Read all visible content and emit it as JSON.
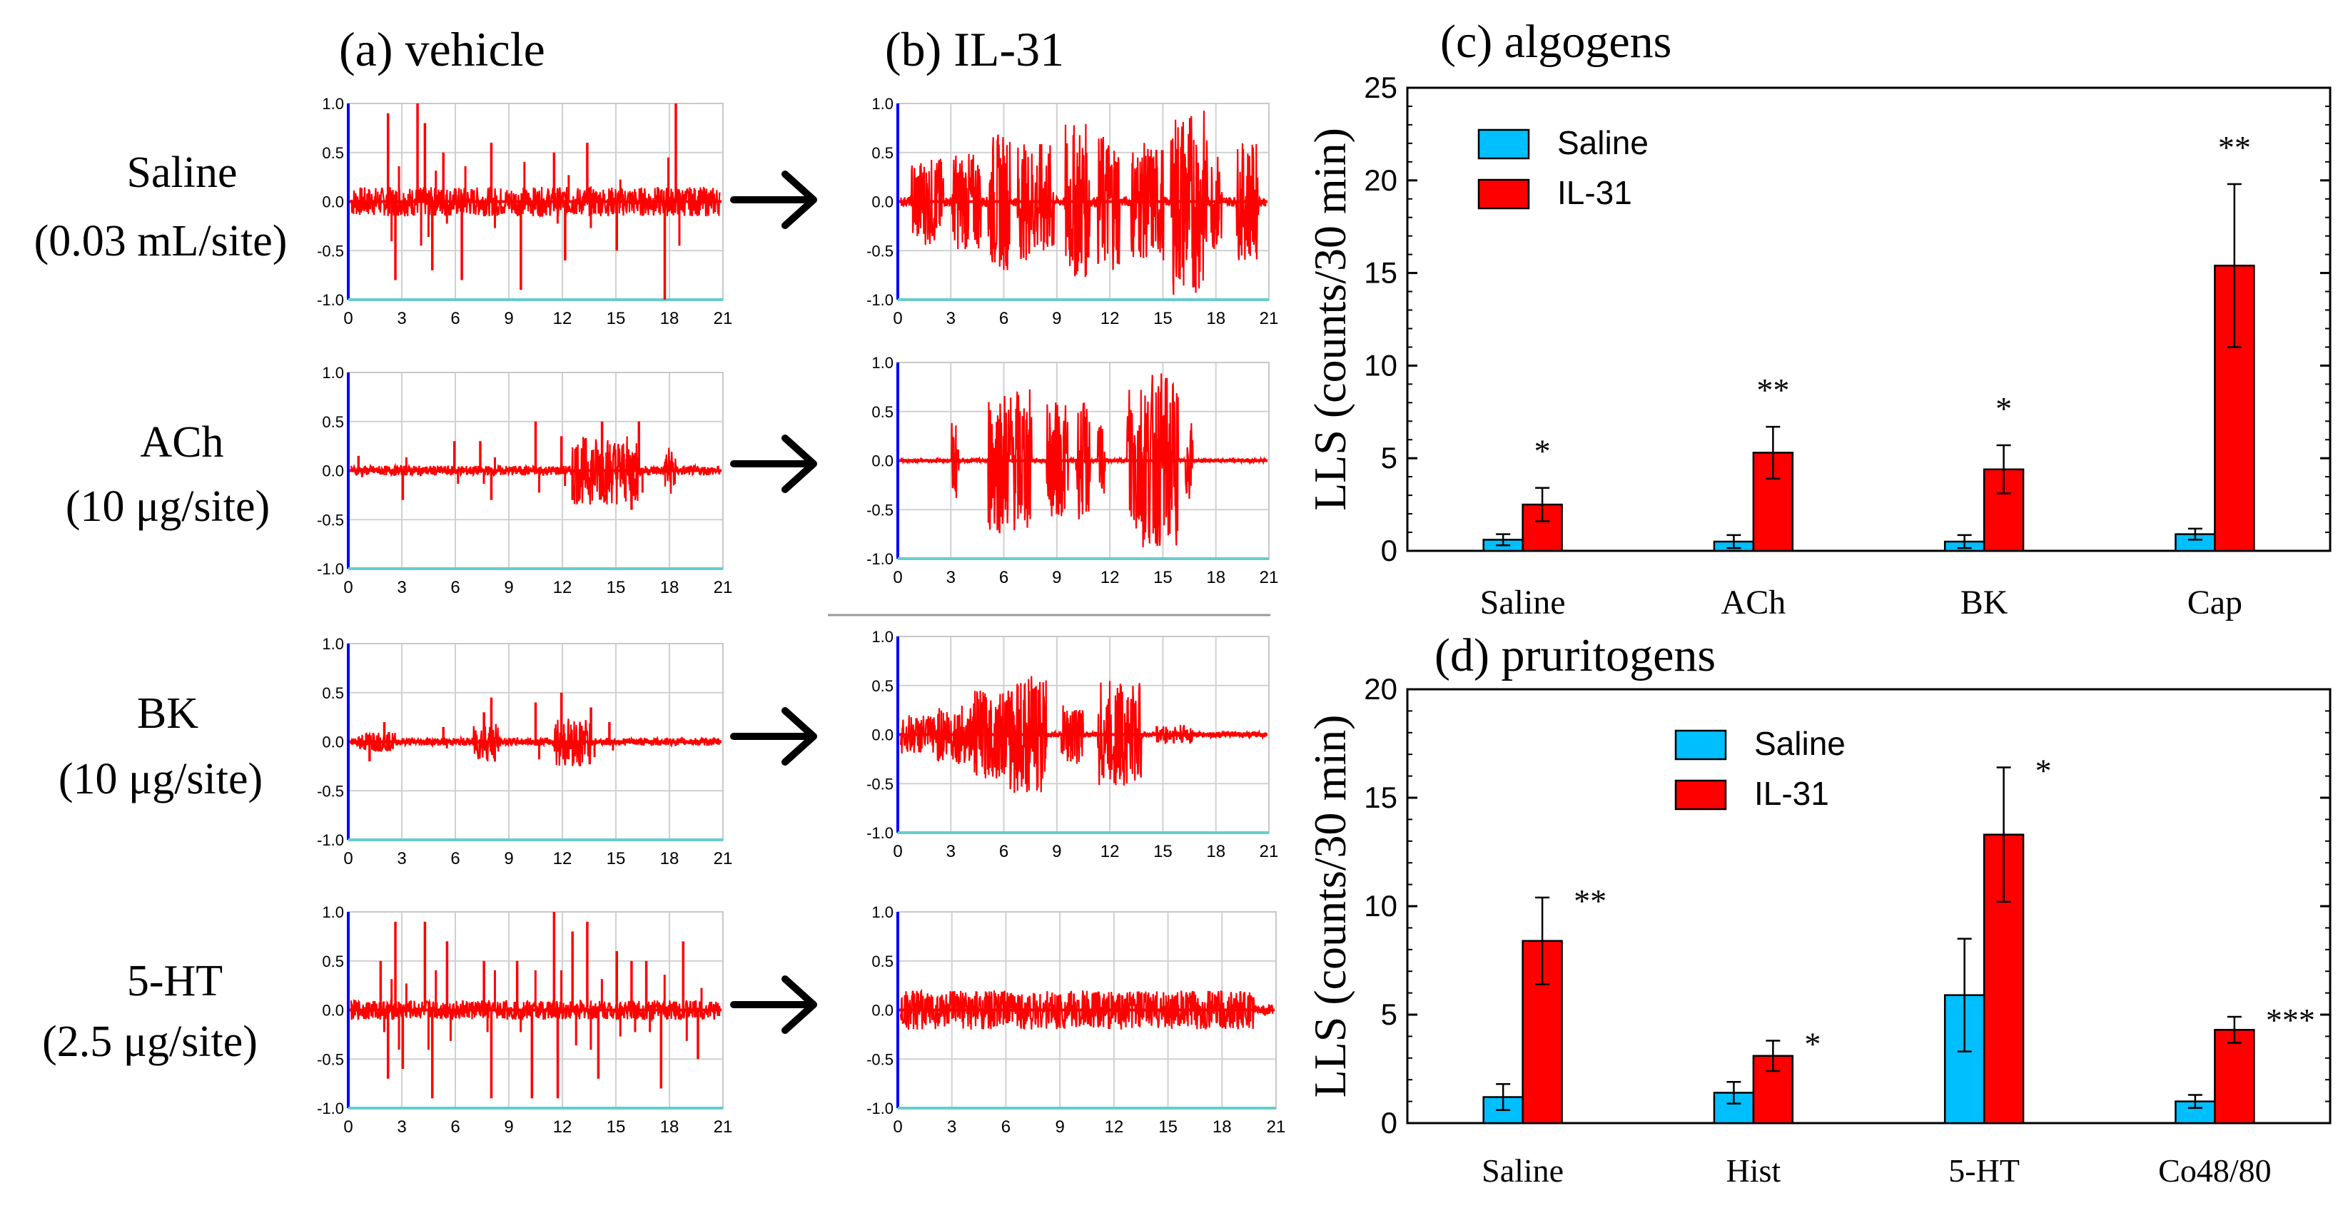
{
  "figure": {
    "panel_a_title": "(a) vehicle",
    "panel_b_title": "(b) IL-31"
  },
  "rows": [
    {
      "line1": "Saline",
      "line2": "(0.03 mL/site)"
    },
    {
      "line1": "ACh",
      "line2": "(10 μg/site)"
    },
    {
      "line1": "BK",
      "line2": "(10 μg/site)"
    },
    {
      "line1": "5-HT",
      "line2": "(2.5 μg/site)"
    }
  ],
  "trace_axis": {
    "y_ticks": [
      "1.0",
      "0.5",
      "0.0",
      "-0.5",
      "-1.0"
    ],
    "x_ticks": [
      "0",
      "3",
      "6",
      "9",
      "12",
      "15",
      "18",
      "21"
    ],
    "trace_color": "#ff0000",
    "axis_color": "#0000ff",
    "baseline_color": "#66cccc"
  },
  "chart_data": [
    {
      "type": "bar",
      "title": "(c) algogens",
      "ylabel": "LLS (counts/30 min)",
      "xlabel": "",
      "ylim": [
        0,
        25
      ],
      "yticks": [
        "0",
        "5",
        "10",
        "15",
        "20",
        "25"
      ],
      "categories": [
        "Saline",
        "ACh",
        "BK",
        "Cap"
      ],
      "legend_position": "top-left",
      "series": [
        {
          "name": "Saline",
          "color": "#00bfff",
          "values": [
            0.6,
            0.5,
            0.5,
            0.9
          ],
          "errors": [
            0.3,
            0.35,
            0.35,
            0.3
          ]
        },
        {
          "name": "IL-31",
          "color": "#ff0000",
          "values": [
            2.5,
            5.3,
            4.4,
            15.4
          ],
          "errors": [
            0.9,
            1.4,
            1.3,
            4.4
          ]
        }
      ],
      "significance": [
        "*",
        "**",
        "*",
        "**"
      ]
    },
    {
      "type": "bar",
      "title": "(d) pruritogens",
      "ylabel": "LLS (counts/30 min)",
      "xlabel": "",
      "ylim": [
        0,
        20
      ],
      "yticks": [
        "0",
        "5",
        "10",
        "15",
        "20"
      ],
      "categories": [
        "Saline",
        "Hist",
        "5-HT",
        "Co48/80"
      ],
      "legend_position": "top-center",
      "series": [
        {
          "name": "Saline",
          "color": "#00bfff",
          "values": [
            1.2,
            1.4,
            5.9,
            1.0
          ],
          "errors": [
            0.6,
            0.5,
            2.6,
            0.3
          ]
        },
        {
          "name": "IL-31",
          "color": "#ff0000",
          "values": [
            8.4,
            3.1,
            13.3,
            4.3
          ],
          "errors": [
            2.0,
            0.7,
            3.1,
            0.6
          ]
        }
      ],
      "significance": [
        "**",
        "*",
        "*",
        "***"
      ]
    }
  ]
}
